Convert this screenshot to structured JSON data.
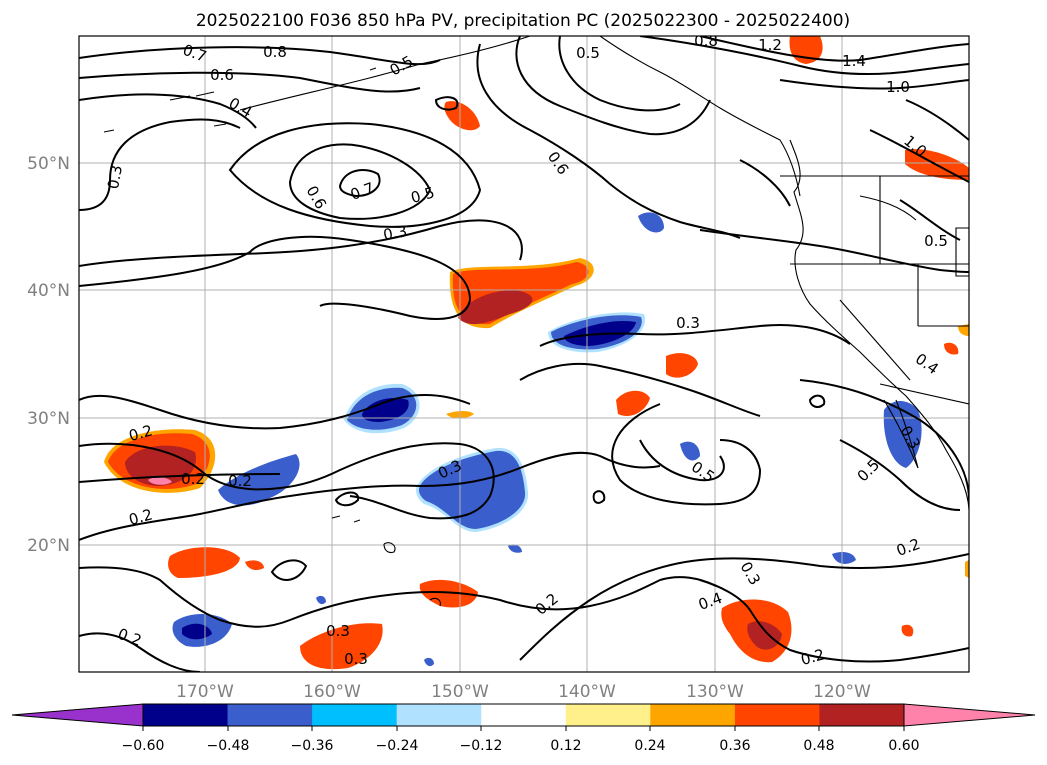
{
  "title": "2025022100 F036 850 hPa PV, precipitation PC (2025022300 - 2025022400)",
  "map": {
    "lat_labels": [
      "50°N",
      "40°N",
      "30°N",
      "20°N"
    ],
    "lon_labels": [
      "170°W",
      "160°W",
      "150°W",
      "140°W",
      "130°W",
      "120°W"
    ],
    "gridlines": true
  },
  "colorbar": {
    "orientation": "horizontal",
    "extend": "both",
    "tick_labels": [
      "−0.60",
      "−0.48",
      "−0.36",
      "−0.24",
      "−0.12",
      "0.12",
      "0.24",
      "0.36",
      "0.48",
      "0.60"
    ],
    "colors": [
      "#9932cc",
      "#00008b",
      "#3a5fcd",
      "#00bfff",
      "#b0e2ff",
      "#ffffff",
      "#fff08c",
      "#ffa500",
      "#ff4500",
      "#b22222",
      "#ff82ab"
    ]
  },
  "contour_labels": [
    "0.8",
    "0.7",
    "0.6",
    "0.5",
    "0.4",
    "0.3",
    "0.6",
    "0.7",
    "0.5",
    "0.3",
    "0.6",
    "0.5",
    "0.8",
    "1.2",
    "1.4",
    "1.0",
    "1.0",
    "0.5",
    "0.3",
    "0.4",
    "0.2",
    "0.2",
    "0.2",
    "0.3",
    "0.5",
    "0.3",
    "0.5",
    "0.2",
    "0.3",
    "0.4",
    "0.2",
    "0.2",
    "0.3",
    "0.2",
    "0.3",
    "0.2"
  ]
}
